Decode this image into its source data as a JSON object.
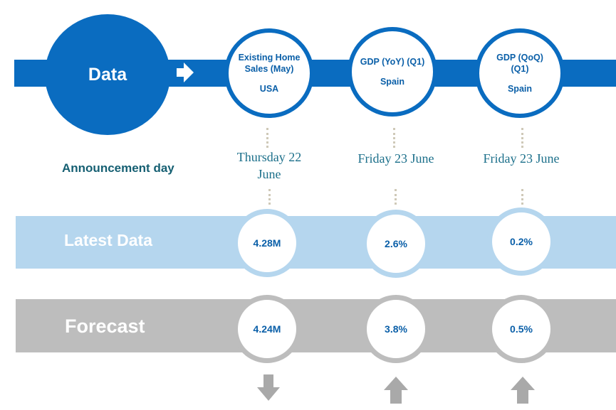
{
  "header": {
    "data_label": "Data"
  },
  "announcement_label": "Announcement day",
  "rows": {
    "latest_label": "Latest Data",
    "forecast_label": "Forecast"
  },
  "indicators": [
    {
      "name": "Existing Home Sales (May)",
      "country": "USA",
      "date": "Thursday 22 June",
      "latest": "4.28M",
      "forecast": "4.24M",
      "trend": "down"
    },
    {
      "name": "GDP (YoY) (Q1)",
      "country": "Spain",
      "date": "Friday 23 June",
      "latest": "2.6%",
      "forecast": "3.8%",
      "trend": "up"
    },
    {
      "name": "GDP (QoQ) (Q1)",
      "country": "Spain",
      "date": "Friday 23 June",
      "latest": "0.2%",
      "forecast": "0.5%",
      "trend": "up"
    }
  ],
  "colors": {
    "primary_blue": "#0a6cc0",
    "latest_band": "#b5d6ee",
    "forecast_band": "#bdbdbd",
    "date_text": "#1b6f8a",
    "arrow_gray": "#a9a9a9"
  }
}
